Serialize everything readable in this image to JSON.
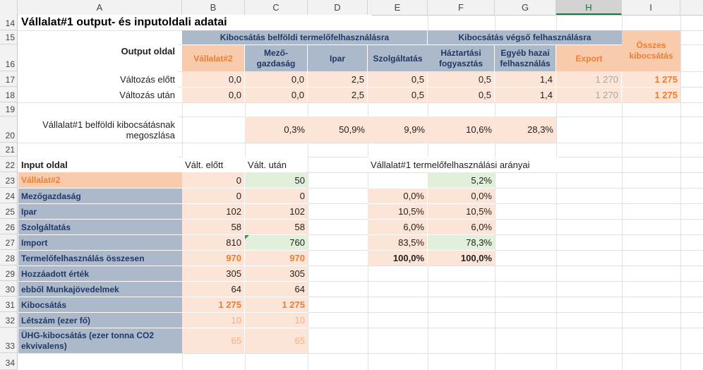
{
  "columns": [
    "A",
    "B",
    "C",
    "D",
    "E",
    "F",
    "G",
    "H",
    "I"
  ],
  "rows": [
    "14",
    "15",
    "16",
    "17",
    "18",
    "19",
    "20",
    "21",
    "22",
    "23",
    "24",
    "25",
    "26",
    "27",
    "28",
    "29",
    "30",
    "31",
    "32",
    "33",
    "34"
  ],
  "title": "Vállalat#1 output- és inputoldali adatai",
  "output": {
    "label": "Output oldal",
    "group1": "Kibocsátás belföldi termelőfelhasználásra",
    "group2": "Kibocsátás végső felhasználásra",
    "total_header": "Összes kibocsátás",
    "sub_headers": [
      "Vállalat#2",
      "Mező-gazdaság",
      "Ipar",
      "Szolgáltatás",
      "Háztartási fogyasztás",
      "Egyéb hazai felhasználás",
      "Export"
    ],
    "before_label": "Változás előtt",
    "after_label": "Változás után",
    "before": [
      "0,0",
      "0,0",
      "2,5",
      "0,5",
      "0,5",
      "1,4",
      "1 270",
      "1 275"
    ],
    "after": [
      "0,0",
      "0,0",
      "2,5",
      "0,5",
      "0,5",
      "1,4",
      "1 270",
      "1 275"
    ],
    "share_label": "Vállalat#1 belföldi kibocsátásnak megoszlása",
    "shares": [
      "0,3%",
      "50,9%",
      "9,9%",
      "10,6%",
      "28,3%"
    ]
  },
  "input": {
    "label": "Input oldal",
    "col_before": "Vált. előtt",
    "col_after": "Vált. után",
    "ratio_title": "Vállalat#1 termelőfelhasználási arányai",
    "rows": [
      {
        "label": "Vállalat#2",
        "before": "0",
        "after": "50",
        "r1": "",
        "r2": "5,2%"
      },
      {
        "label": "Mezőgazdaság",
        "before": "0",
        "after": "0",
        "r1": "0,0%",
        "r2": "0,0%"
      },
      {
        "label": "Ipar",
        "before": "102",
        "after": "102",
        "r1": "10,5%",
        "r2": "10,5%"
      },
      {
        "label": "Szolgáltatás",
        "before": "58",
        "after": "58",
        "r1": "6,0%",
        "r2": "6,0%"
      },
      {
        "label": "Import",
        "before": "810",
        "after": "760",
        "r1": "83,5%",
        "r2": "78,3%"
      },
      {
        "label": "Termelőfelhasználás összesen",
        "before": "970",
        "after": "970",
        "r1": "100,0%",
        "r2": "100,0%"
      },
      {
        "label": "Hozzáadott érték",
        "before": "305",
        "after": "305"
      },
      {
        "label": "ebből Munkajövedelmek",
        "before": "64",
        "after": "64"
      },
      {
        "label": "Kibocsátás",
        "before": "1 275",
        "after": "1 275"
      },
      {
        "label": "Létszám (ezer fő)",
        "before": "10",
        "after": "10"
      },
      {
        "label": "ÜHG-kibocsátás (ezer tonna CO2 ekvivalens)",
        "before": "65",
        "after": "65"
      }
    ]
  }
}
